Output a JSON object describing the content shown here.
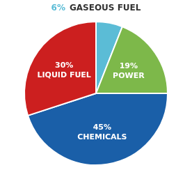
{
  "chart_data": {
    "type": "pie",
    "categories": [
      "GASEOUS FUEL",
      "POWER",
      "CHEMICALS",
      "LIQUID FUEL"
    ],
    "values": [
      6,
      19,
      45,
      30
    ],
    "value_labels": [
      "6%",
      "19%",
      "45%",
      "30%"
    ],
    "colors": [
      "#5bbcd6",
      "#7db84a",
      "#1a5fa8",
      "#cc1f1f"
    ],
    "data_labels": true
  }
}
